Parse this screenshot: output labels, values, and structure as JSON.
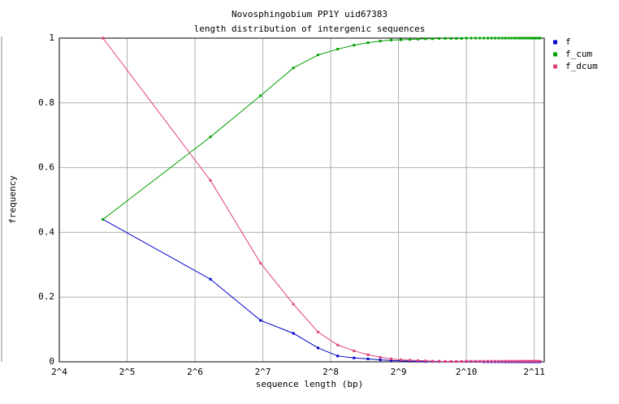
{
  "chart_data": {
    "type": "line",
    "title": "Novosphingobium PP1Y uid67383",
    "subtitle": "length distribution of intergenic sequences",
    "x_label": "sequence length (bp)",
    "y_label": "frequency",
    "x_scale": "log2",
    "xlim": [
      16,
      2270
    ],
    "xticks": [
      {
        "value": 16,
        "label": "2^4"
      },
      {
        "value": 32,
        "label": "2^5"
      },
      {
        "value": 64,
        "label": "2^6"
      },
      {
        "value": 128,
        "label": "2^7"
      },
      {
        "value": 256,
        "label": "2^8"
      },
      {
        "value": 512,
        "label": "2^9"
      },
      {
        "value": 1024,
        "label": "2^10"
      },
      {
        "value": 2048,
        "label": "2^11"
      }
    ],
    "ylim": [
      0,
      1
    ],
    "yticks": [
      0,
      0.2,
      0.4,
      0.6,
      0.8,
      1
    ],
    "grid": true,
    "legend": "right",
    "x": [
      25,
      75,
      125,
      175,
      225,
      275,
      325,
      375,
      425,
      475,
      525,
      575,
      625,
      675,
      725,
      775,
      825,
      875,
      925,
      975,
      1025,
      1075,
      1125,
      1175,
      1225,
      1275,
      1325,
      1375,
      1425,
      1475,
      1525,
      1575,
      1625,
      1675,
      1725,
      1775,
      1825,
      1875,
      1925,
      1975,
      2025,
      2075,
      2125,
      2175
    ],
    "series": [
      {
        "name": "f",
        "color": "#0000cc",
        "values": [
          0.44,
          0.255,
          0.128,
          0.088,
          0.043,
          0.018,
          0.012,
          0.009,
          0.006,
          0.004,
          0.003,
          0.002,
          0.002,
          0.001,
          0.001,
          0.001,
          0.001,
          0.001,
          0.001,
          0.001,
          0.001,
          0.001,
          0.001,
          0.001,
          0,
          0,
          0,
          0,
          0,
          0,
          0,
          0,
          0,
          0,
          0,
          0,
          0,
          0,
          0,
          0,
          0,
          0,
          0,
          0
        ]
      },
      {
        "name": "f_cum",
        "color": "#00a000",
        "values": [
          0.44,
          0.695,
          0.822,
          0.908,
          0.948,
          0.966,
          0.978,
          0.986,
          0.991,
          0.994,
          0.995,
          0.996,
          0.997,
          0.998,
          0.998,
          0.999,
          0.999,
          0.999,
          0.999,
          0.999,
          1,
          1,
          1,
          1,
          1,
          1,
          1,
          1,
          1,
          1,
          1,
          1,
          1,
          1,
          1,
          1,
          1,
          1,
          1,
          1,
          1,
          1,
          1,
          1
        ]
      },
      {
        "name": "f_dcum",
        "color": "#e0407a",
        "values": [
          1,
          0.56,
          0.305,
          0.178,
          0.092,
          0.052,
          0.034,
          0.022,
          0.014,
          0.009,
          0.006,
          0.005,
          0.004,
          0.003,
          0.002,
          0.002,
          0.001,
          0.001,
          0.001,
          0.001,
          0.002,
          0.002,
          0.002,
          0.002,
          0.002,
          0.002,
          0.002,
          0.002,
          0.002,
          0.002,
          0.002,
          0.002,
          0.002,
          0.002,
          0.002,
          0.002,
          0.002,
          0.002,
          0.002,
          0.002,
          0.002,
          0.002,
          0.002,
          0.002
        ]
      }
    ]
  }
}
